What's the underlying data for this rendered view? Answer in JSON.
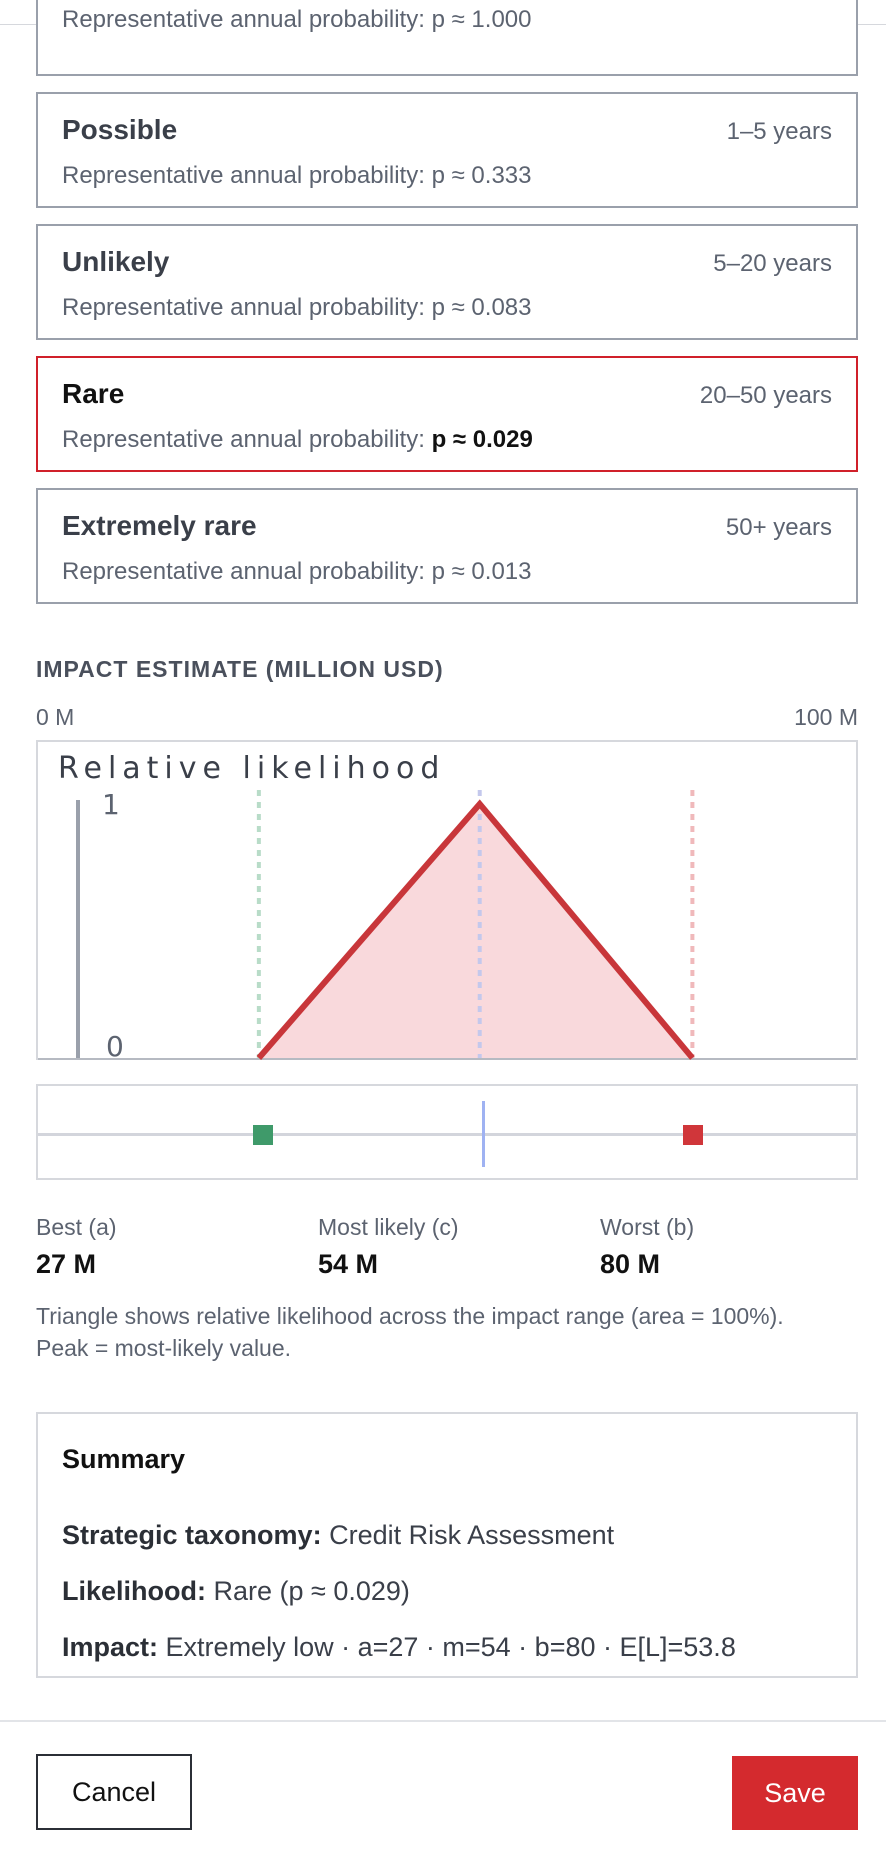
{
  "likelihood_options": [
    {
      "title": "",
      "range": "",
      "prob_label": "Representative annual probability:",
      "prob": "p ≈ 1.000",
      "selected": false
    },
    {
      "title": "Possible",
      "range": "1–5 years",
      "prob_label": "Representative annual probability:",
      "prob": "p ≈ 0.333",
      "selected": false
    },
    {
      "title": "Unlikely",
      "range": "5–20 years",
      "prob_label": "Representative annual probability:",
      "prob": "p ≈ 0.083",
      "selected": false
    },
    {
      "title": "Rare",
      "range": "20–50 years",
      "prob_label": "Representative annual probability:",
      "prob": "p ≈ 0.029",
      "selected": true
    },
    {
      "title": "Extremely rare",
      "range": "50+ years",
      "prob_label": "Representative annual probability:",
      "prob": "p ≈ 0.013",
      "selected": false
    }
  ],
  "impact": {
    "section_label": "IMPACT ESTIMATE (MILLION USD)",
    "axis_min": "0 M",
    "axis_max": "100 M",
    "best_label": "Best (a)",
    "best_value": "27 M",
    "mode_label": "Most likely (c)",
    "mode_value": "54 M",
    "worst_label": "Worst (b)",
    "worst_value": "80 M",
    "note": "Triangle shows relative likelihood across the impact range (area = 100%). Peak = most-likely value."
  },
  "chart_data": {
    "type": "area",
    "title": "Relative likelihood",
    "x": [
      27,
      54,
      80
    ],
    "y": [
      0,
      1,
      0
    ],
    "xlim": [
      0,
      100
    ],
    "ylim": [
      0,
      1
    ],
    "ytick_labels": [
      "1",
      "0"
    ],
    "markers": {
      "best": 27,
      "mode": 54,
      "worst": 80
    },
    "colors": {
      "line": "#c8363a",
      "fill": "#f9d9dc",
      "best": "#3f9a6a",
      "mode": "#9fb2f2",
      "worst": "#e68b8e"
    }
  },
  "summary": {
    "title": "Summary",
    "taxonomy_label": "Strategic taxonomy:",
    "taxonomy_value": "Credit Risk Assessment",
    "likelihood_label": "Likelihood:",
    "likelihood_value": "Rare (p ≈ 0.029)",
    "impact_label": "Impact:",
    "impact_value": "Extremely low · a=27 · m=54 · b=80 · E[L]=53.8"
  },
  "footer": {
    "cancel_label": "Cancel",
    "save_label": "Save"
  }
}
